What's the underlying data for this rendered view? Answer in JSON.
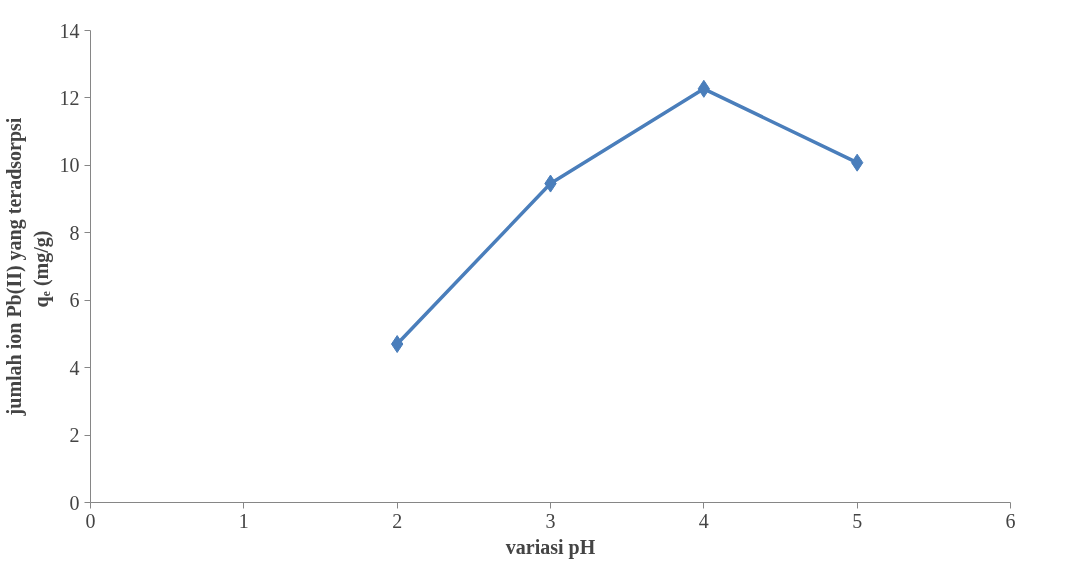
{
  "chart_data": {
    "type": "line",
    "xlabel": "variasi pH",
    "ylabel": "jumlah ion Pb(II) yang teradsorpsi\nqₑ  (mg/g)",
    "x": [
      2,
      3,
      4,
      5
    ],
    "series": [
      {
        "color": "#4a7ebb",
        "values": [
          4.7,
          9.46,
          12.27,
          10.08
        ]
      }
    ],
    "marker": "diamond",
    "line_style": "solid",
    "grid": false,
    "xlim": [
      0,
      6
    ],
    "xticks": [
      0,
      1,
      2,
      3,
      4,
      5,
      6
    ],
    "ylim": [
      0,
      14
    ],
    "yticks": [
      0,
      2,
      4,
      6,
      8,
      10,
      12,
      14
    ]
  }
}
